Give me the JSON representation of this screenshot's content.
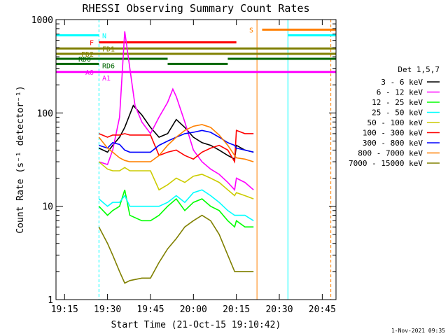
{
  "chart_data": {
    "type": "line",
    "title": "RHESSI Observing Summary Count Rates",
    "xlabel": "Start Time (21-Oct-15 19:10:42)",
    "ylabel": "Count Rate (s⁻¹ detector⁻¹)",
    "yscale": "log",
    "ylim": [
      1,
      1000
    ],
    "xlim_minutes": [
      19.2,
      20.83
    ],
    "x_ticks": [
      "19:15",
      "19:30",
      "19:45",
      "20:00",
      "20:15",
      "20:30",
      "20:45"
    ],
    "y_ticks": [
      "1",
      "10",
      "100",
      "1000"
    ],
    "legend_title": "Det 1,5,7",
    "legend_position": "right",
    "footer": "1-Nov-2021 09:35",
    "series": [
      {
        "name": "3 - 6 keV",
        "color": "#000000",
        "points": [
          [
            19.45,
            42
          ],
          [
            19.5,
            38
          ],
          [
            19.53,
            45
          ],
          [
            19.57,
            55
          ],
          [
            19.6,
            70
          ],
          [
            19.65,
            120
          ],
          [
            19.7,
            95
          ],
          [
            19.75,
            70
          ],
          [
            19.8,
            55
          ],
          [
            19.85,
            60
          ],
          [
            19.9,
            85
          ],
          [
            19.95,
            70
          ],
          [
            20.0,
            55
          ],
          [
            20.05,
            48
          ],
          [
            20.1,
            45
          ],
          [
            20.15,
            40
          ],
          [
            20.2,
            35
          ],
          [
            20.24,
            32
          ],
          [
            20.25,
            45
          ],
          [
            20.3,
            40
          ],
          [
            20.35,
            38
          ]
        ]
      },
      {
        "name": "6 - 12 keV",
        "color": "#ff00ff",
        "points": [
          [
            19.45,
            30
          ],
          [
            19.5,
            28
          ],
          [
            19.53,
            40
          ],
          [
            19.57,
            90
          ],
          [
            19.6,
            750
          ],
          [
            19.63,
            300
          ],
          [
            19.66,
            120
          ],
          [
            19.7,
            80
          ],
          [
            19.75,
            60
          ],
          [
            19.8,
            90
          ],
          [
            19.85,
            130
          ],
          [
            19.88,
            180
          ],
          [
            19.9,
            150
          ],
          [
            19.95,
            80
          ],
          [
            20.0,
            40
          ],
          [
            20.05,
            30
          ],
          [
            20.1,
            25
          ],
          [
            20.15,
            22
          ],
          [
            20.2,
            18
          ],
          [
            20.24,
            15
          ],
          [
            20.25,
            20
          ],
          [
            20.3,
            18
          ],
          [
            20.35,
            15
          ]
        ]
      },
      {
        "name": "12 - 25 keV",
        "color": "#00ff00",
        "points": [
          [
            19.45,
            10
          ],
          [
            19.5,
            8
          ],
          [
            19.53,
            9
          ],
          [
            19.57,
            10
          ],
          [
            19.6,
            15
          ],
          [
            19.63,
            8
          ],
          [
            19.7,
            7
          ],
          [
            19.75,
            7
          ],
          [
            19.8,
            8
          ],
          [
            19.85,
            10
          ],
          [
            19.9,
            12
          ],
          [
            19.95,
            9
          ],
          [
            20.0,
            11
          ],
          [
            20.05,
            12
          ],
          [
            20.1,
            10
          ],
          [
            20.15,
            9
          ],
          [
            20.2,
            7
          ],
          [
            20.24,
            6
          ],
          [
            20.25,
            7
          ],
          [
            20.3,
            6
          ],
          [
            20.35,
            6
          ]
        ]
      },
      {
        "name": "25 - 50 keV",
        "color": "#00ffff",
        "points": [
          [
            19.45,
            12
          ],
          [
            19.5,
            10
          ],
          [
            19.53,
            11
          ],
          [
            19.57,
            11
          ],
          [
            19.6,
            13
          ],
          [
            19.63,
            10
          ],
          [
            19.7,
            10
          ],
          [
            19.75,
            10
          ],
          [
            19.8,
            10
          ],
          [
            19.85,
            11
          ],
          [
            19.9,
            13
          ],
          [
            19.95,
            11
          ],
          [
            20.0,
            14
          ],
          [
            20.05,
            15
          ],
          [
            20.1,
            13
          ],
          [
            20.15,
            11
          ],
          [
            20.2,
            9
          ],
          [
            20.24,
            8
          ],
          [
            20.25,
            8
          ],
          [
            20.3,
            8
          ],
          [
            20.35,
            7
          ]
        ]
      },
      {
        "name": "50 - 100 keV",
        "color": "#cccc00",
        "points": [
          [
            19.45,
            30
          ],
          [
            19.5,
            25
          ],
          [
            19.53,
            24
          ],
          [
            19.57,
            24
          ],
          [
            19.6,
            26
          ],
          [
            19.63,
            24
          ],
          [
            19.7,
            24
          ],
          [
            19.75,
            24
          ],
          [
            19.8,
            15
          ],
          [
            19.85,
            17
          ],
          [
            19.9,
            20
          ],
          [
            19.95,
            18
          ],
          [
            20.0,
            21
          ],
          [
            20.05,
            22
          ],
          [
            20.1,
            20
          ],
          [
            20.15,
            18
          ],
          [
            20.2,
            15
          ],
          [
            20.24,
            13
          ],
          [
            20.25,
            14
          ],
          [
            20.3,
            13
          ],
          [
            20.35,
            12
          ]
        ]
      },
      {
        "name": "100 - 300 keV",
        "color": "#ff0000",
        "points": [
          [
            19.45,
            60
          ],
          [
            19.5,
            55
          ],
          [
            19.53,
            58
          ],
          [
            19.57,
            58
          ],
          [
            19.6,
            60
          ],
          [
            19.63,
            58
          ],
          [
            19.7,
            58
          ],
          [
            19.75,
            58
          ],
          [
            19.8,
            35
          ],
          [
            19.85,
            38
          ],
          [
            19.9,
            40
          ],
          [
            19.95,
            35
          ],
          [
            20.0,
            32
          ],
          [
            20.05,
            38
          ],
          [
            20.1,
            42
          ],
          [
            20.15,
            45
          ],
          [
            20.2,
            40
          ],
          [
            20.24,
            30
          ],
          [
            20.25,
            65
          ],
          [
            20.3,
            60
          ],
          [
            20.35,
            60
          ]
        ]
      },
      {
        "name": "300 - 800 keV",
        "color": "#0000ff",
        "points": [
          [
            19.45,
            45
          ],
          [
            19.5,
            42
          ],
          [
            19.53,
            48
          ],
          [
            19.57,
            46
          ],
          [
            19.6,
            40
          ],
          [
            19.63,
            38
          ],
          [
            19.7,
            38
          ],
          [
            19.75,
            38
          ],
          [
            19.8,
            45
          ],
          [
            19.85,
            50
          ],
          [
            19.9,
            55
          ],
          [
            19.95,
            60
          ],
          [
            20.0,
            62
          ],
          [
            20.05,
            65
          ],
          [
            20.1,
            62
          ],
          [
            20.15,
            55
          ],
          [
            20.2,
            48
          ],
          [
            20.24,
            45
          ],
          [
            20.25,
            42
          ],
          [
            20.3,
            40
          ],
          [
            20.35,
            38
          ]
        ]
      },
      {
        "name": "800 - 7000 keV",
        "color": "#ff8000",
        "points": [
          [
            19.45,
            55
          ],
          [
            19.5,
            42
          ],
          [
            19.53,
            38
          ],
          [
            19.57,
            33
          ],
          [
            19.6,
            31
          ],
          [
            19.63,
            30
          ],
          [
            19.7,
            30
          ],
          [
            19.75,
            30
          ],
          [
            19.8,
            35
          ],
          [
            19.85,
            45
          ],
          [
            19.9,
            55
          ],
          [
            19.95,
            65
          ],
          [
            20.0,
            72
          ],
          [
            20.05,
            75
          ],
          [
            20.1,
            70
          ],
          [
            20.15,
            58
          ],
          [
            20.2,
            45
          ],
          [
            20.24,
            35
          ],
          [
            20.25,
            33
          ],
          [
            20.3,
            32
          ],
          [
            20.35,
            30
          ]
        ]
      },
      {
        "name": "7000 - 15000 keV",
        "color": "#808000",
        "points": [
          [
            19.45,
            6
          ],
          [
            19.5,
            4
          ],
          [
            19.53,
            3
          ],
          [
            19.57,
            2
          ],
          [
            19.6,
            1.5
          ],
          [
            19.63,
            1.6
          ],
          [
            19.7,
            1.7
          ],
          [
            19.75,
            1.7
          ],
          [
            19.8,
            2.5
          ],
          [
            19.85,
            3.5
          ],
          [
            19.9,
            4.5
          ],
          [
            19.95,
            6
          ],
          [
            20.0,
            7
          ],
          [
            20.05,
            8
          ],
          [
            20.1,
            7
          ],
          [
            20.15,
            5
          ],
          [
            20.2,
            3
          ],
          [
            20.24,
            2
          ],
          [
            20.25,
            2
          ],
          [
            20.3,
            2
          ],
          [
            20.35,
            2
          ]
        ]
      }
    ],
    "flag_bars": [
      {
        "label": "N",
        "color": "#00ffff",
        "level_rate": 680,
        "segments": [
          [
            19.2,
            19.45
          ],
          [
            20.55,
            20.83
          ]
        ]
      },
      {
        "label": "S",
        "color": "#ff8000",
        "level_rate": 780,
        "segments": [
          [
            20.4,
            20.83
          ]
        ]
      },
      {
        "label": "F",
        "color": "#ff0000",
        "level_rate": 570,
        "segments": [
          [
            19.45,
            20.25
          ]
        ]
      },
      {
        "label": "FD1",
        "color": "#808000",
        "level_rate": 490,
        "segments": [
          [
            19.2,
            20.83
          ]
        ]
      },
      {
        "label": "FD2",
        "color": "#808000",
        "level_rate": 430,
        "segments": [
          [
            19.2,
            20.83
          ]
        ]
      },
      {
        "label": "RD0",
        "color": "#006600",
        "level_rate": 380,
        "segments": [
          [
            19.2,
            19.45
          ],
          [
            19.45,
            19.85
          ],
          [
            20.2,
            20.83
          ]
        ]
      },
      {
        "label": "RD6",
        "color": "#006600",
        "level_rate": 335,
        "segments": [
          [
            19.2,
            19.45
          ],
          [
            19.85,
            20.2
          ]
        ]
      },
      {
        "label": "A0",
        "color": "#ff00ff",
        "level_rate": 275,
        "segments": [
          [
            19.2,
            20.83
          ]
        ]
      },
      {
        "label": "A1",
        "color": "#ff00ff",
        "level_rate": 275,
        "segments": []
      }
    ],
    "vlines": [
      {
        "x": 19.2,
        "color": "#00ffff",
        "dashed": false
      },
      {
        "x": 19.45,
        "color": "#00ffff",
        "dashed": true
      },
      {
        "x": 20.37,
        "color": "#ff8000",
        "dashed": false
      },
      {
        "x": 20.55,
        "color": "#00ffff",
        "dashed": false
      },
      {
        "x": 20.8,
        "color": "#ff8000",
        "dashed": true
      }
    ]
  }
}
